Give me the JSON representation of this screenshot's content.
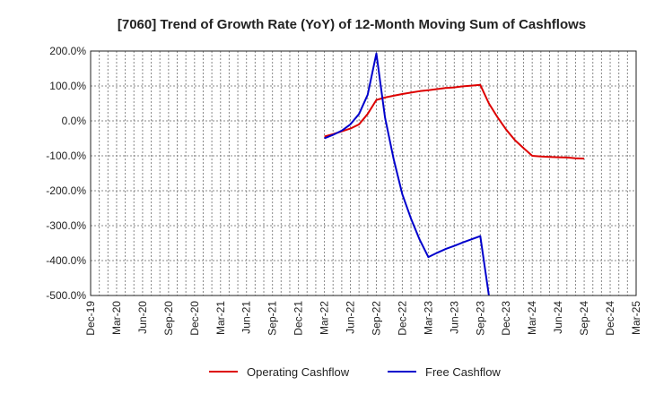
{
  "chart_data": {
    "type": "line",
    "title": "[7060]  Trend of Growth Rate (YoY) of 12-Month Moving Sum of Cashflows",
    "xlabel": "",
    "ylabel": "",
    "ylim": [
      -500,
      200
    ],
    "y_ticks": [
      "200.0%",
      "100.0%",
      "0.0%",
      "-100.0%",
      "-200.0%",
      "-300.0%",
      "-400.0%",
      "-500.0%"
    ],
    "y_tick_values": [
      200,
      100,
      0,
      -100,
      -200,
      -300,
      -400,
      -500
    ],
    "x_ticks": [
      "Dec-19",
      "Mar-20",
      "Jun-20",
      "Sep-20",
      "Dec-20",
      "Mar-21",
      "Jun-21",
      "Sep-21",
      "Dec-21",
      "Mar-22",
      "Jun-22",
      "Sep-22",
      "Dec-22",
      "Mar-23",
      "Jun-23",
      "Sep-23",
      "Dec-23",
      "Mar-24",
      "Jun-24",
      "Sep-24",
      "Dec-24",
      "Mar-25"
    ],
    "grid": true,
    "legend_position": "bottom",
    "series": [
      {
        "name": "Operating Cashflow",
        "color": "#dd0000",
        "points": [
          [
            "Mar-22",
            -45
          ],
          [
            "Apr-22",
            -38
          ],
          [
            "May-22",
            -30
          ],
          [
            "Jun-22",
            -22
          ],
          [
            "Jul-22",
            -10
          ],
          [
            "Aug-22",
            20
          ],
          [
            "Sep-22",
            60
          ],
          [
            "Oct-22",
            67
          ],
          [
            "Nov-22",
            72
          ],
          [
            "Dec-22",
            77
          ],
          [
            "Jan-23",
            81
          ],
          [
            "Feb-23",
            85
          ],
          [
            "Mar-23",
            88
          ],
          [
            "Apr-23",
            91
          ],
          [
            "May-23",
            94
          ],
          [
            "Jun-23",
            96
          ],
          [
            "Jul-23",
            99
          ],
          [
            "Aug-23",
            101
          ],
          [
            "Sep-23",
            103
          ],
          [
            "Oct-23",
            50
          ],
          [
            "Nov-23",
            10
          ],
          [
            "Dec-23",
            -25
          ],
          [
            "Jan-24",
            -55
          ],
          [
            "Feb-24",
            -78
          ],
          [
            "Mar-24",
            -100
          ],
          [
            "Apr-24",
            -102
          ],
          [
            "May-24",
            -103
          ],
          [
            "Jun-24",
            -104
          ],
          [
            "Jul-24",
            -105
          ],
          [
            "Aug-24",
            -107
          ],
          [
            "Sep-24",
            -108
          ]
        ]
      },
      {
        "name": "Free Cashflow",
        "color": "#0000cc",
        "points": [
          [
            "Mar-22",
            -50
          ],
          [
            "Apr-22",
            -40
          ],
          [
            "May-22",
            -28
          ],
          [
            "Jun-22",
            -10
          ],
          [
            "Jul-22",
            20
          ],
          [
            "Aug-22",
            75
          ],
          [
            "Sep-22",
            193
          ],
          [
            "Oct-22",
            10
          ],
          [
            "Nov-22",
            -110
          ],
          [
            "Dec-22",
            -210
          ],
          [
            "Jan-23",
            -280
          ],
          [
            "Feb-23",
            -340
          ],
          [
            "Mar-23",
            -390
          ],
          [
            "Apr-23",
            -378
          ],
          [
            "May-23",
            -367
          ],
          [
            "Jun-23",
            -358
          ],
          [
            "Jul-23",
            -348
          ],
          [
            "Aug-23",
            -339
          ],
          [
            "Sep-23",
            -330
          ],
          [
            "Oct-23",
            -500
          ]
        ]
      }
    ]
  }
}
